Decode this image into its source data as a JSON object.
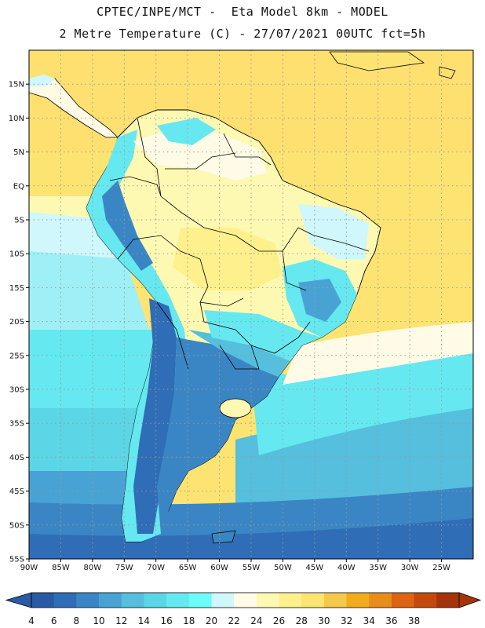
{
  "header": {
    "line1": "CPTEC/INPE/MCT -  Eta Model 8km - MODEL",
    "line2": "2 Metre Temperature (C) - 27/07/2021 00UTC fct=5h"
  },
  "map": {
    "lon_range": [
      -90,
      -20
    ],
    "lat_range": [
      -55,
      20
    ],
    "lat_ticks": [
      {
        "v": 15,
        "label": "15N"
      },
      {
        "v": 10,
        "label": "10N"
      },
      {
        "v": 5,
        "label": "5N"
      },
      {
        "v": 0,
        "label": "EQ"
      },
      {
        "v": -5,
        "label": "5S"
      },
      {
        "v": -10,
        "label": "10S"
      },
      {
        "v": -15,
        "label": "15S"
      },
      {
        "v": -20,
        "label": "20S"
      },
      {
        "v": -25,
        "label": "25S"
      },
      {
        "v": -30,
        "label": "30S"
      },
      {
        "v": -35,
        "label": "35S"
      },
      {
        "v": -40,
        "label": "40S"
      },
      {
        "v": -45,
        "label": "45S"
      },
      {
        "v": -50,
        "label": "50S"
      },
      {
        "v": -55,
        "label": "55S"
      }
    ],
    "lon_ticks": [
      {
        "v": -90,
        "label": "90W"
      },
      {
        "v": -85,
        "label": "85W"
      },
      {
        "v": -80,
        "label": "80W"
      },
      {
        "v": -75,
        "label": "75W"
      },
      {
        "v": -70,
        "label": "70W"
      },
      {
        "v": -65,
        "label": "65W"
      },
      {
        "v": -60,
        "label": "60W"
      },
      {
        "v": -55,
        "label": "55W"
      },
      {
        "v": -50,
        "label": "50W"
      },
      {
        "v": -45,
        "label": "45W"
      },
      {
        "v": -40,
        "label": "40W"
      },
      {
        "v": -35,
        "label": "35W"
      },
      {
        "v": -30,
        "label": "30W"
      },
      {
        "v": -25,
        "label": "25W"
      }
    ],
    "grid": true
  },
  "colorbar": {
    "labels": [
      "4",
      "6",
      "8",
      "10",
      "12",
      "14",
      "16",
      "18",
      "20",
      "22",
      "24",
      "26",
      "28",
      "30",
      "32",
      "34",
      "36",
      "38"
    ],
    "colors": [
      "#2a5aa6",
      "#2f6db7",
      "#3a86c5",
      "#48a3d4",
      "#55bfdd",
      "#5cd5e6",
      "#66e8f0",
      "#6cfcfc",
      "#cff7fc",
      "#fffbe6",
      "#fef9b2",
      "#fef08c",
      "#fde472",
      "#f4c84a",
      "#f1ac1c",
      "#e88c1c",
      "#dc6413",
      "#c44a0c",
      "#a5340c"
    ],
    "under_color": "#2a5aa6",
    "over_color": "#a5340c"
  }
}
